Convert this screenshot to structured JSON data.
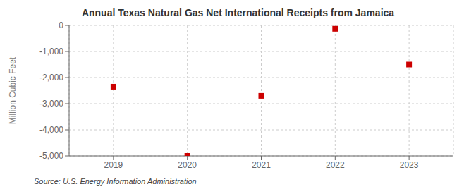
{
  "chart_data": {
    "type": "scatter",
    "title": "Annual Texas Natural Gas Net International Receipts from Jamaica",
    "ylabel": "Million Cubic Feet",
    "source": "Source: U.S. Energy Information Administration",
    "x": [
      2019,
      2020,
      2021,
      2022,
      2023
    ],
    "values": [
      -2350,
      -5000,
      -2700,
      -130,
      -1500
    ],
    "xlim": [
      2018.4,
      2023.6
    ],
    "ylim": [
      -5000,
      0
    ],
    "xticks": [
      2019,
      2020,
      2021,
      2022,
      2023
    ],
    "yticks": [
      0,
      {
        "value": -1000,
        "label": "-1,000"
      },
      {
        "value": -2000,
        "label": "-2,000"
      },
      {
        "value": -3000,
        "label": "-3,000"
      },
      {
        "value": -4000,
        "label": "-4,000"
      },
      {
        "value": -5000,
        "label": "-5,000"
      }
    ],
    "color": "#cc0000",
    "marker": "square",
    "grid": true
  }
}
